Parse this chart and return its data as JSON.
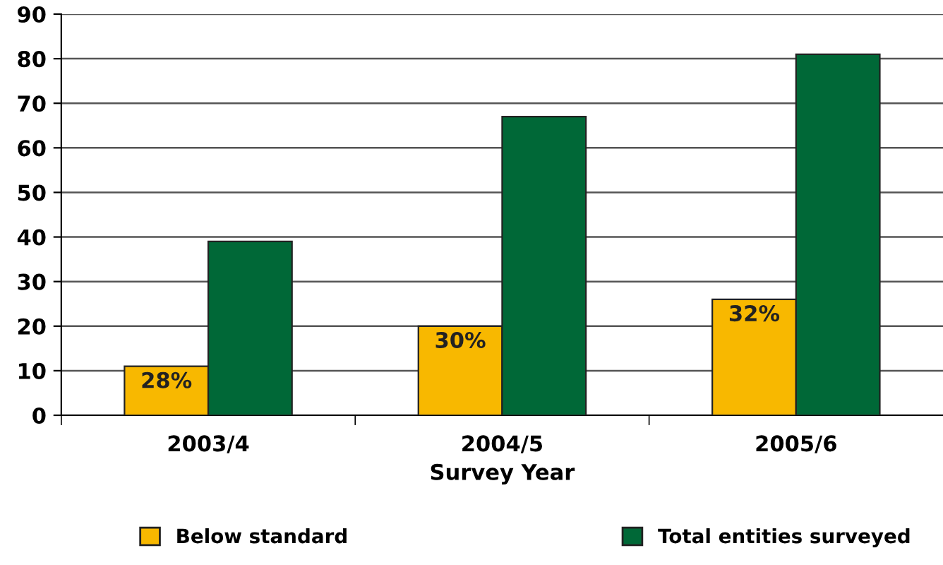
{
  "chart_data": {
    "type": "bar",
    "xlabel": "Survey Year",
    "categories": [
      "2003/4",
      "2004/5",
      "2005/6"
    ],
    "series": [
      {
        "name": "Below standard",
        "color": "#f8b800",
        "values": [
          11,
          20,
          26
        ]
      },
      {
        "name": "Total entities surveyed",
        "color": "#006837",
        "values": [
          39,
          67,
          81
        ]
      }
    ],
    "annotations": [
      {
        "text": "28%",
        "x": "2003/4",
        "y": 11
      },
      {
        "text": "30%",
        "x": "2004/5",
        "y": 20
      },
      {
        "text": "32%",
        "x": "2005/6",
        "y": 26
      }
    ],
    "ylim": [
      0,
      90
    ],
    "yticks": [
      0,
      10,
      20,
      30,
      40,
      50,
      60,
      70,
      80,
      90
    ],
    "grid": "y",
    "legend": "bottom"
  }
}
